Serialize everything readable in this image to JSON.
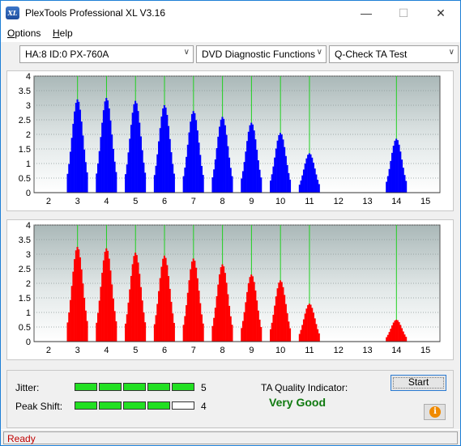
{
  "window": {
    "app_icon": "XL",
    "title": "PlexTools Professional XL V3.16",
    "minimize": "—",
    "maximize": "☐",
    "close": "✕"
  },
  "menu": [
    {
      "label": "Options",
      "underline": "O",
      "rest": "ptions"
    },
    {
      "label": "Help",
      "underline": "H",
      "rest": "elp"
    }
  ],
  "toolbar": {
    "drive": "HA:8 ID:0  PX-760A",
    "function": "DVD Diagnostic Functions",
    "test": "Q-Check TA Test"
  },
  "chart_data": [
    {
      "type": "bar",
      "title": "",
      "color": "#0000ff",
      "xlim": [
        1.5,
        15.5
      ],
      "ylim": [
        0,
        4
      ],
      "x_ticks": [
        2,
        3,
        4,
        5,
        6,
        7,
        8,
        9,
        10,
        11,
        12,
        13,
        14,
        15
      ],
      "y_ticks": [
        0,
        0.5,
        1,
        1.5,
        2,
        2.5,
        3,
        3.5,
        4
      ],
      "y_tick_labels": [
        "0",
        "0.5",
        "1",
        "1.5",
        "2",
        "2.5",
        "3",
        "3.5",
        "4"
      ],
      "markers": [
        3,
        4,
        5,
        6,
        7,
        8,
        9,
        10,
        11,
        14
      ],
      "peaks": [
        {
          "x": 3,
          "height": 3.2
        },
        {
          "x": 4,
          "height": 3.25
        },
        {
          "x": 5,
          "height": 3.15
        },
        {
          "x": 6,
          "height": 3.0
        },
        {
          "x": 7,
          "height": 2.8
        },
        {
          "x": 8,
          "height": 2.6
        },
        {
          "x": 9,
          "height": 2.4
        },
        {
          "x": 10,
          "height": 2.05
        },
        {
          "x": 11,
          "height": 1.35
        },
        {
          "x": 14,
          "height": 1.85
        }
      ]
    },
    {
      "type": "bar",
      "title": "",
      "color": "#ff0000",
      "xlim": [
        1.5,
        15.5
      ],
      "ylim": [
        0,
        4
      ],
      "x_ticks": [
        2,
        3,
        4,
        5,
        6,
        7,
        8,
        9,
        10,
        11,
        12,
        13,
        14,
        15
      ],
      "y_ticks": [
        0,
        0.5,
        1,
        1.5,
        2,
        2.5,
        3,
        3.5,
        4
      ],
      "y_tick_labels": [
        "0",
        "0.5",
        "1",
        "1.5",
        "2",
        "2.5",
        "3",
        "3.5",
        "4"
      ],
      "markers": [
        3,
        4,
        5,
        6,
        7,
        8,
        9,
        10,
        11,
        14
      ],
      "peaks": [
        {
          "x": 3,
          "height": 3.25
        },
        {
          "x": 4,
          "height": 3.2
        },
        {
          "x": 5,
          "height": 3.05
        },
        {
          "x": 6,
          "height": 2.95
        },
        {
          "x": 7,
          "height": 2.85
        },
        {
          "x": 8,
          "height": 2.65
        },
        {
          "x": 9,
          "height": 2.3
        },
        {
          "x": 10,
          "height": 2.1
        },
        {
          "x": 11,
          "height": 1.3
        },
        {
          "x": 14,
          "height": 0.75
        }
      ]
    }
  ],
  "results": {
    "jitter_label": "Jitter:",
    "jitter_value": "5",
    "jitter_level": 5,
    "peak_shift_label": "Peak Shift:",
    "peak_shift_value": "4",
    "peak_shift_level": 4,
    "meter_max": 5,
    "ta_label": "TA Quality Indicator:",
    "ta_value": "Very Good",
    "start_label": "Start",
    "info_icon": "i"
  },
  "status": "Ready"
}
